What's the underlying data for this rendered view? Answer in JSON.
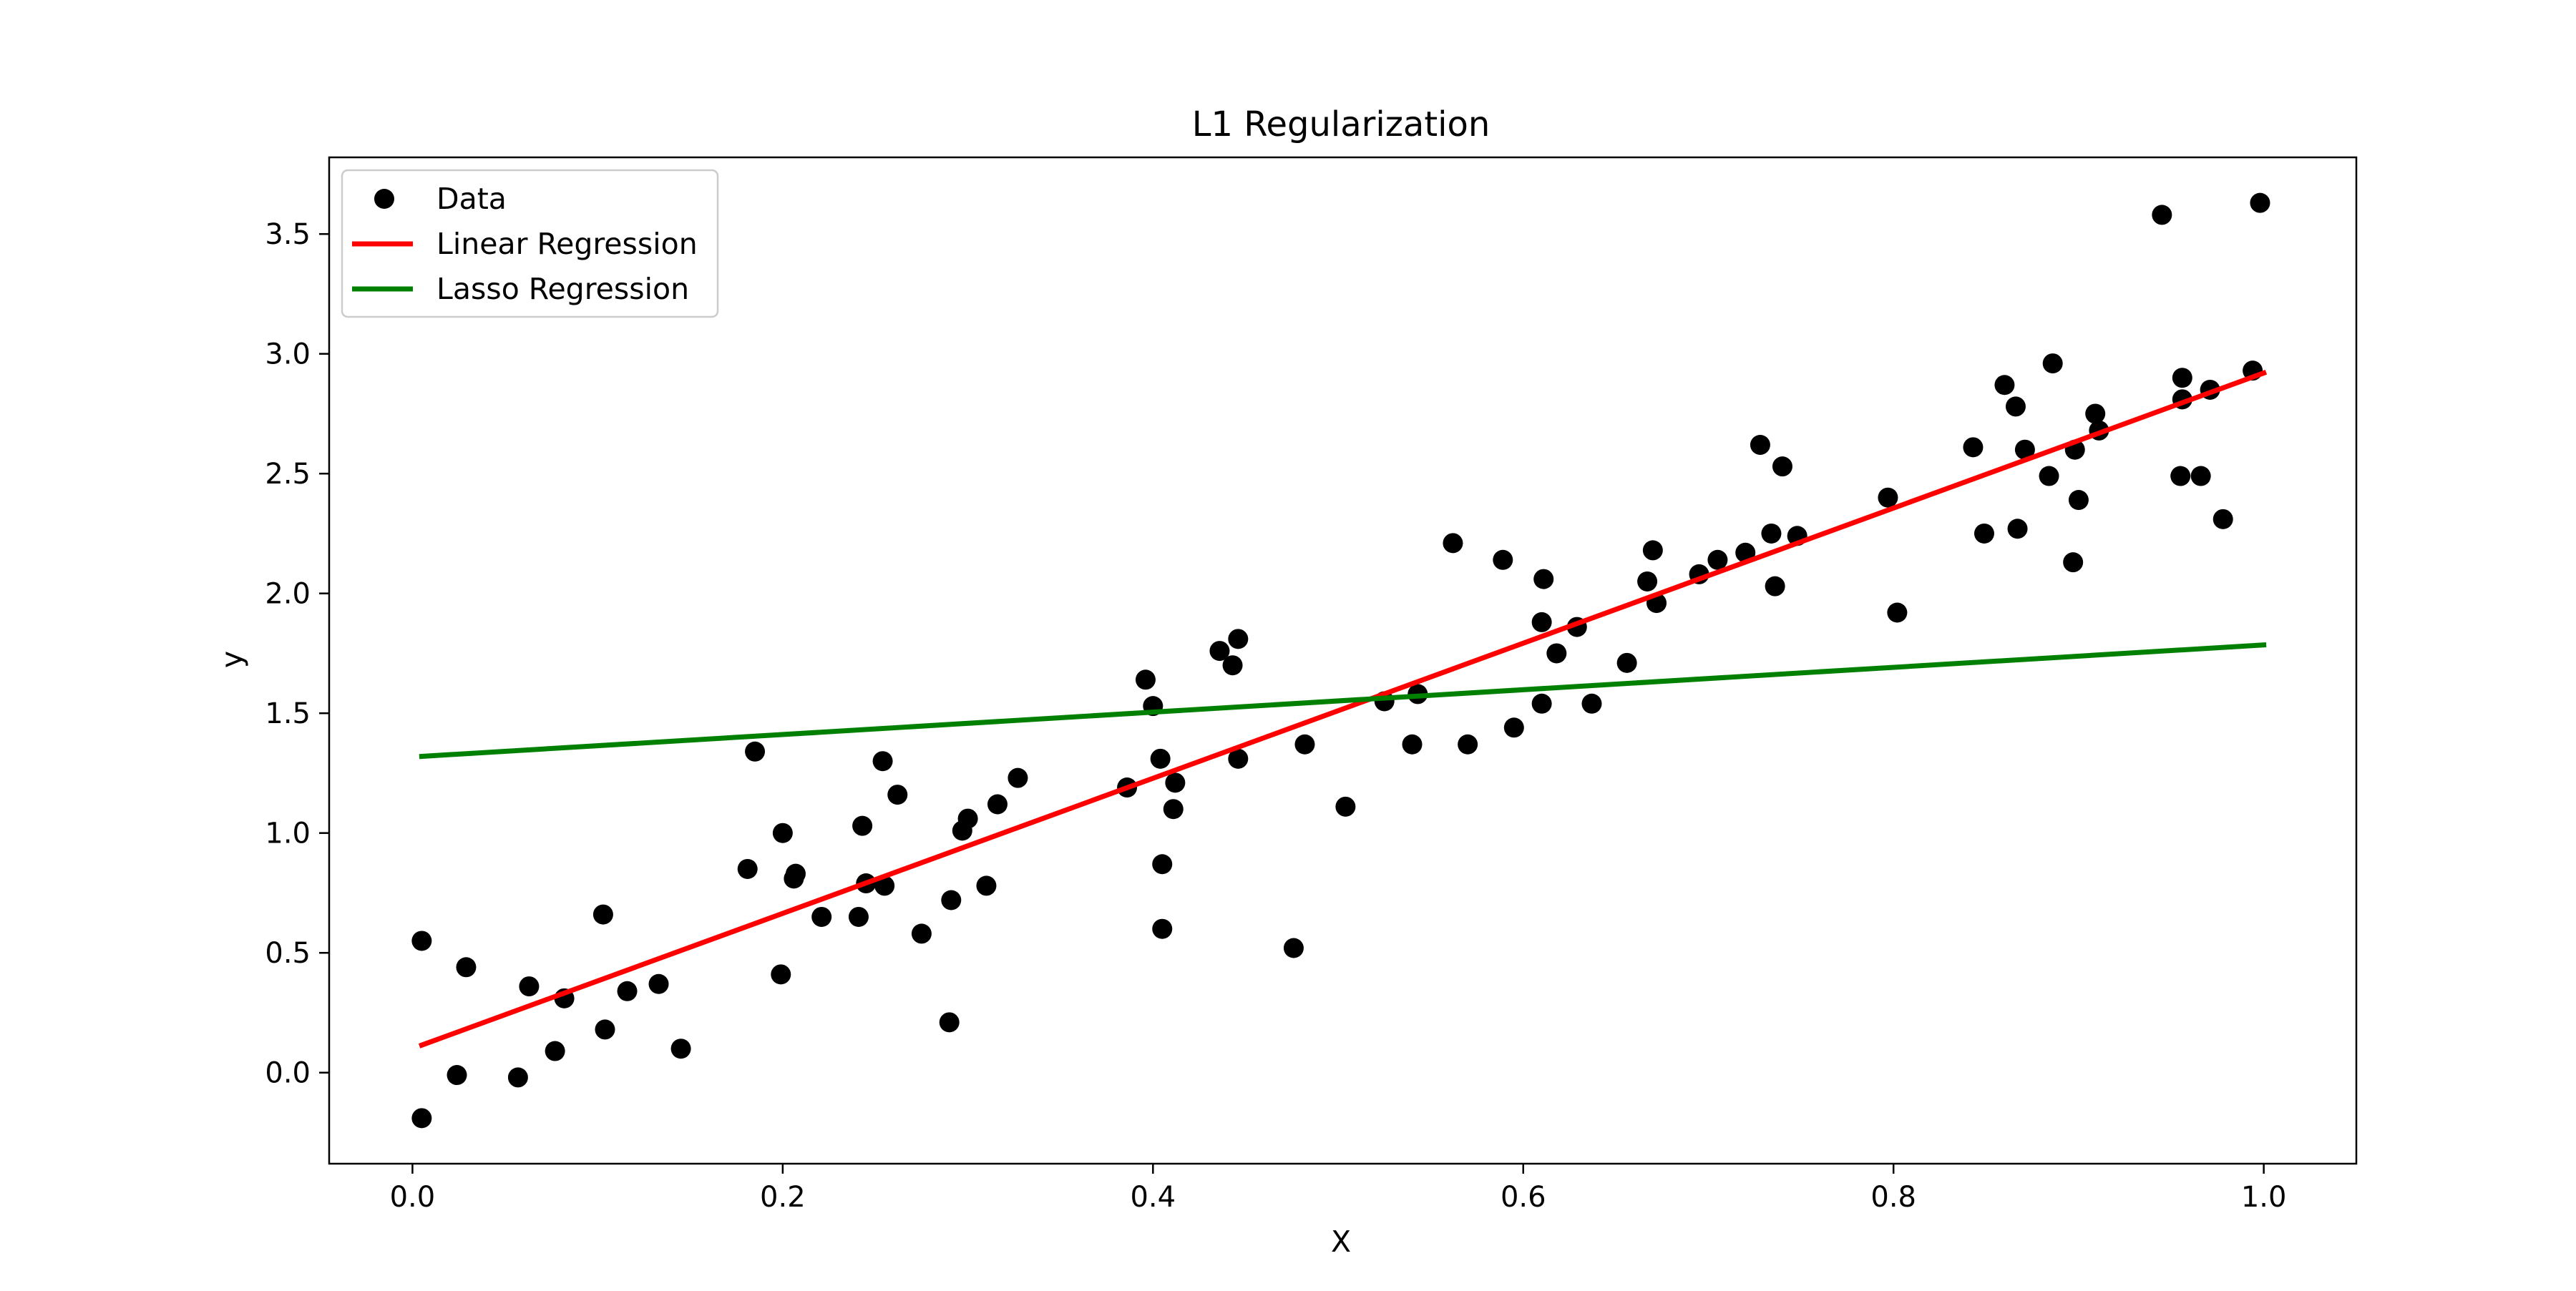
{
  "chart_data": {
    "type": "scatter",
    "title": "L1 Regularization",
    "xlabel": "X",
    "ylabel": "y",
    "xlim": [
      -0.045,
      1.05
    ],
    "ylim": [
      -0.38,
      3.82
    ],
    "xticks": [
      0.0,
      0.2,
      0.4,
      0.6,
      0.8,
      1.0
    ],
    "xtick_labels": [
      "0.0",
      "0.2",
      "0.4",
      "0.6",
      "0.8",
      "1.0"
    ],
    "yticks": [
      0.0,
      0.5,
      1.0,
      1.5,
      2.0,
      2.5,
      3.0,
      3.5
    ],
    "ytick_labels": [
      "0.0",
      "0.5",
      "1.0",
      "1.5",
      "2.0",
      "2.5",
      "3.0",
      "3.5"
    ],
    "grid": false,
    "legend_position": "upper-left",
    "series": [
      {
        "name": "Data",
        "kind": "scatter",
        "color": "#000000",
        "points": [
          [
            0.005,
            0.55
          ],
          [
            0.005,
            -0.19
          ],
          [
            0.024,
            -0.01
          ],
          [
            0.029,
            0.44
          ],
          [
            0.057,
            -0.02
          ],
          [
            0.063,
            0.36
          ],
          [
            0.077,
            0.09
          ],
          [
            0.082,
            0.31
          ],
          [
            0.103,
            0.66
          ],
          [
            0.104,
            0.18
          ],
          [
            0.116,
            0.34
          ],
          [
            0.133,
            0.37
          ],
          [
            0.145,
            0.1
          ],
          [
            0.181,
            0.85
          ],
          [
            0.185,
            1.34
          ],
          [
            0.199,
            0.41
          ],
          [
            0.2,
            1.0
          ],
          [
            0.206,
            0.81
          ],
          [
            0.207,
            0.83
          ],
          [
            0.221,
            0.65
          ],
          [
            0.241,
            0.65
          ],
          [
            0.243,
            1.03
          ],
          [
            0.245,
            0.79
          ],
          [
            0.254,
            1.3
          ],
          [
            0.255,
            0.78
          ],
          [
            0.262,
            1.16
          ],
          [
            0.275,
            0.58
          ],
          [
            0.29,
            0.21
          ],
          [
            0.291,
            0.72
          ],
          [
            0.297,
            1.01
          ],
          [
            0.3,
            1.06
          ],
          [
            0.31,
            0.78
          ],
          [
            0.316,
            1.12
          ],
          [
            0.327,
            1.23
          ],
          [
            0.386,
            1.19
          ],
          [
            0.396,
            1.64
          ],
          [
            0.4,
            1.53
          ],
          [
            0.404,
            1.31
          ],
          [
            0.405,
            0.87
          ],
          [
            0.405,
            0.6
          ],
          [
            0.411,
            1.1
          ],
          [
            0.412,
            1.21
          ],
          [
            0.436,
            1.76
          ],
          [
            0.443,
            1.7
          ],
          [
            0.446,
            1.81
          ],
          [
            0.446,
            1.31
          ],
          [
            0.476,
            0.52
          ],
          [
            0.482,
            1.37
          ],
          [
            0.504,
            1.11
          ],
          [
            0.525,
            1.55
          ],
          [
            0.54,
            1.37
          ],
          [
            0.543,
            1.58
          ],
          [
            0.562,
            2.21
          ],
          [
            0.57,
            1.37
          ],
          [
            0.589,
            2.14
          ],
          [
            0.595,
            1.44
          ],
          [
            0.61,
            1.88
          ],
          [
            0.61,
            1.54
          ],
          [
            0.611,
            2.06
          ],
          [
            0.618,
            1.75
          ],
          [
            0.629,
            1.86
          ],
          [
            0.637,
            1.54
          ],
          [
            0.656,
            1.71
          ],
          [
            0.667,
            2.05
          ],
          [
            0.67,
            2.18
          ],
          [
            0.672,
            1.96
          ],
          [
            0.695,
            2.08
          ],
          [
            0.705,
            2.14
          ],
          [
            0.72,
            2.17
          ],
          [
            0.728,
            2.62
          ],
          [
            0.734,
            2.25
          ],
          [
            0.736,
            2.03
          ],
          [
            0.74,
            2.53
          ],
          [
            0.748,
            2.24
          ],
          [
            0.797,
            2.4
          ],
          [
            0.802,
            1.92
          ],
          [
            0.843,
            2.61
          ],
          [
            0.849,
            2.25
          ],
          [
            0.86,
            2.87
          ],
          [
            0.866,
            2.78
          ],
          [
            0.867,
            2.27
          ],
          [
            0.871,
            2.6
          ],
          [
            0.884,
            2.49
          ],
          [
            0.886,
            2.96
          ],
          [
            0.897,
            2.13
          ],
          [
            0.898,
            2.6
          ],
          [
            0.9,
            2.39
          ],
          [
            0.909,
            2.75
          ],
          [
            0.911,
            2.68
          ],
          [
            0.945,
            3.58
          ],
          [
            0.955,
            2.49
          ],
          [
            0.956,
            2.9
          ],
          [
            0.956,
            2.81
          ],
          [
            0.966,
            2.49
          ],
          [
            0.971,
            2.85
          ],
          [
            0.978,
            2.31
          ],
          [
            0.994,
            2.93
          ],
          [
            0.998,
            3.63
          ]
        ]
      },
      {
        "name": "Linear Regression",
        "kind": "line",
        "color": "#ff0000",
        "points": [
          [
            0.005,
            0.115
          ],
          [
            1.0,
            2.92
          ]
        ]
      },
      {
        "name": "Lasso Regression",
        "kind": "line",
        "color": "#008000",
        "points": [
          [
            0.005,
            1.32
          ],
          [
            1.0,
            1.785
          ]
        ]
      }
    ]
  }
}
